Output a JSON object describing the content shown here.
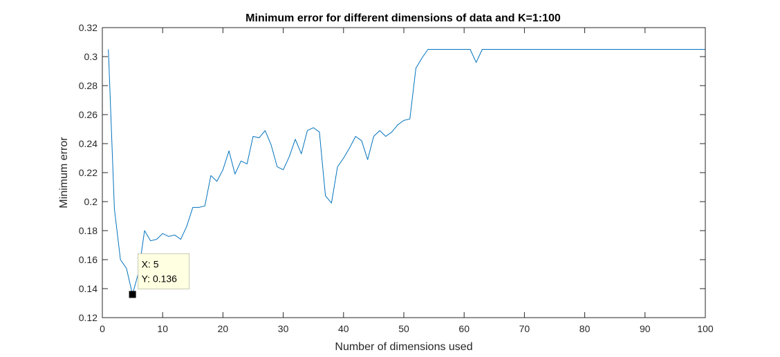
{
  "chart_data": {
    "type": "line",
    "title": "Minimum error for different dimensions of data and K=1:100",
    "xlabel": "Number of dimensions used",
    "ylabel": "Minimum error",
    "xlim": [
      0,
      100
    ],
    "ylim": [
      0.12,
      0.32
    ],
    "xticks": [
      0,
      10,
      20,
      30,
      40,
      50,
      60,
      70,
      80,
      90,
      100
    ],
    "yticks": [
      0.12,
      0.14,
      0.16,
      0.18,
      0.2,
      0.22,
      0.24,
      0.26,
      0.28,
      0.3,
      0.32
    ],
    "xtick_labels": [
      "0",
      "10",
      "20",
      "30",
      "40",
      "50",
      "60",
      "70",
      "80",
      "90",
      "100"
    ],
    "ytick_labels": [
      "0.12",
      "0.14",
      "0.16",
      "0.18",
      "0.2",
      "0.22",
      "0.24",
      "0.26",
      "0.28",
      "0.3",
      "0.32"
    ],
    "grid": false,
    "line_color": "#0072BD",
    "series": [
      {
        "x": [
          1,
          2,
          3,
          4,
          5,
          6,
          7,
          8,
          9,
          10,
          11,
          12,
          13,
          14,
          15,
          16,
          17,
          18,
          19,
          20,
          21,
          22,
          23,
          24,
          25,
          26,
          27,
          28,
          29,
          30,
          31,
          32,
          33,
          34,
          35,
          36,
          37,
          38,
          39,
          40,
          41,
          42,
          43,
          44,
          45,
          46,
          47,
          48,
          49,
          50,
          51,
          52,
          53,
          54,
          55,
          56,
          57,
          58,
          59,
          60,
          61,
          62,
          63,
          64,
          65,
          66,
          67,
          68,
          69,
          70,
          71,
          72,
          73,
          74,
          75,
          76,
          77,
          78,
          79,
          80,
          81,
          82,
          83,
          84,
          85,
          86,
          87,
          88,
          89,
          90,
          91,
          92,
          93,
          94,
          95,
          96,
          97,
          98,
          99,
          100
        ],
        "values": [
          0.305,
          0.195,
          0.16,
          0.154,
          0.136,
          0.151,
          0.18,
          0.173,
          0.174,
          0.178,
          0.176,
          0.177,
          0.174,
          0.183,
          0.196,
          0.196,
          0.197,
          0.218,
          0.214,
          0.222,
          0.235,
          0.219,
          0.228,
          0.226,
          0.245,
          0.244,
          0.249,
          0.239,
          0.224,
          0.222,
          0.231,
          0.243,
          0.233,
          0.249,
          0.251,
          0.248,
          0.204,
          0.199,
          0.224,
          0.23,
          0.237,
          0.245,
          0.242,
          0.229,
          0.245,
          0.249,
          0.245,
          0.248,
          0.253,
          0.256,
          0.257,
          0.292,
          0.299,
          0.305,
          0.305,
          0.305,
          0.305,
          0.305,
          0.305,
          0.305,
          0.305,
          0.296,
          0.305,
          0.305,
          0.305,
          0.305,
          0.305,
          0.305,
          0.305,
          0.305,
          0.305,
          0.305,
          0.305,
          0.305,
          0.305,
          0.305,
          0.305,
          0.305,
          0.305,
          0.305,
          0.305,
          0.305,
          0.305,
          0.305,
          0.305,
          0.305,
          0.305,
          0.305,
          0.305,
          0.305,
          0.305,
          0.305,
          0.305,
          0.305,
          0.305,
          0.305,
          0.305,
          0.305,
          0.305,
          0.305
        ]
      }
    ],
    "datatip": {
      "x": 5,
      "y": 0.136,
      "x_text": "X: 5",
      "y_text": "Y: 0.136"
    }
  }
}
